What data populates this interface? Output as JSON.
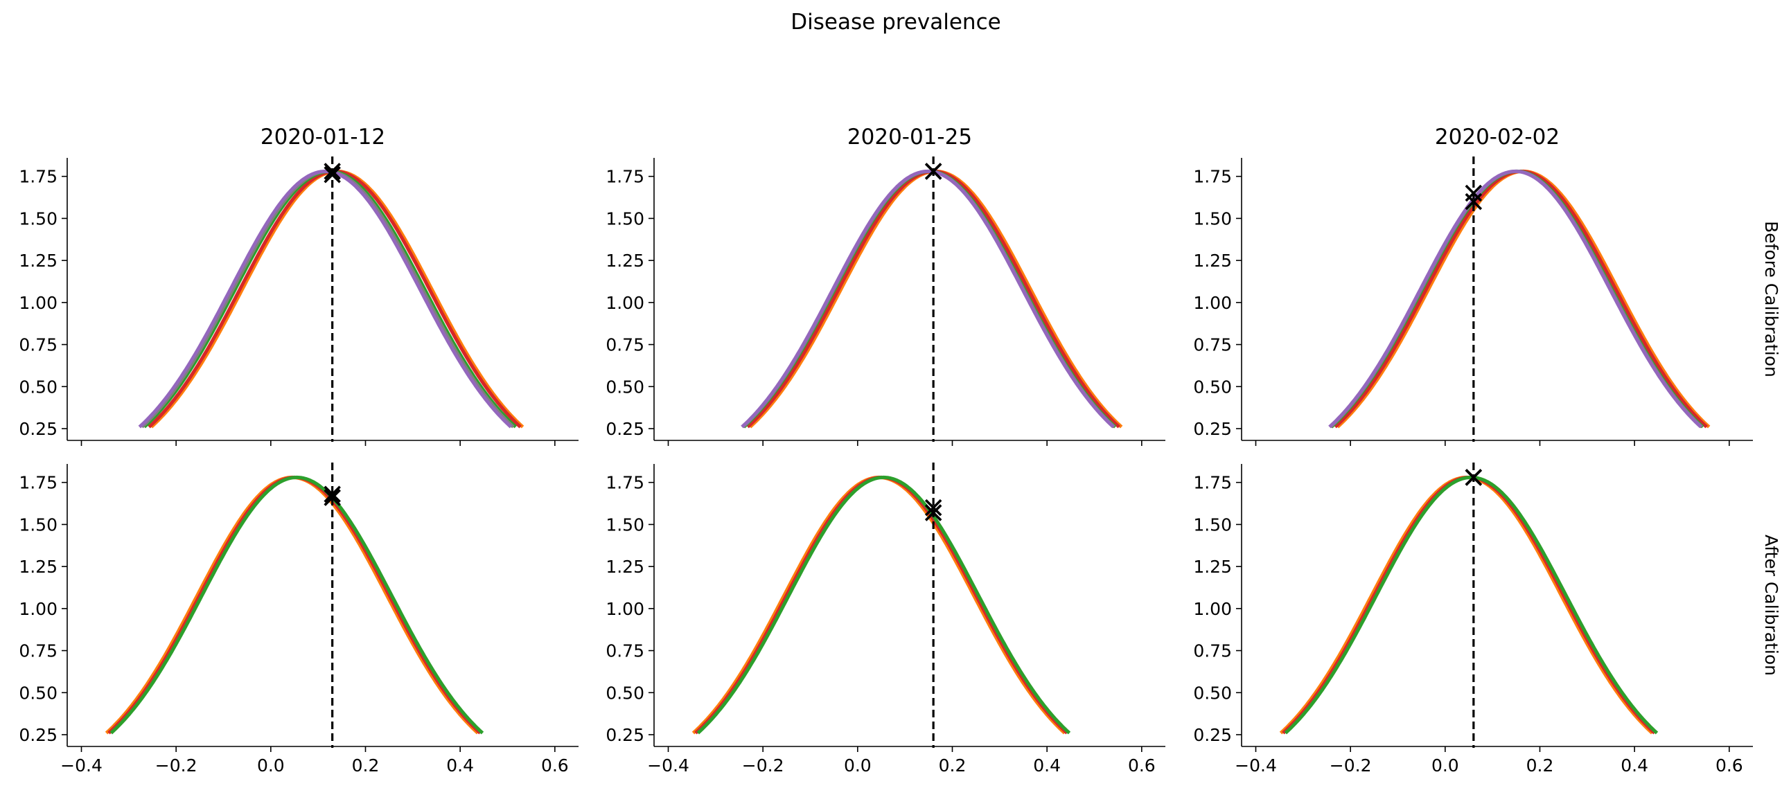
{
  "title": "Disease prevalence",
  "columns": [
    "2020-01-12",
    "2020-01-25",
    "2020-02-02"
  ],
  "rows": [
    "Before Calibration",
    "After Calibration"
  ],
  "chart_data": {
    "type": "line",
    "title": "Disease prevalence",
    "xlim": [
      -0.43,
      0.65
    ],
    "ylim": [
      0.18,
      1.86
    ],
    "xticks": [
      -0.4,
      -0.2,
      0.0,
      0.2,
      0.4,
      0.6
    ],
    "yticks": [
      0.25,
      0.5,
      0.75,
      1.0,
      1.25,
      1.5,
      1.75
    ],
    "curve_shape": "gaussian, peak height 1.78, evaluated where y >= 0.26",
    "series_colors": [
      "#ff7f0e",
      "#d62728",
      "#2ca02c",
      "#7f7f7f",
      "#9467bd",
      "#1f77b4"
    ],
    "panels": [
      {
        "row": "Before Calibration",
        "column": "2020-01-12",
        "vline_x": 0.13,
        "marker_y": [
          1.78,
          1.76
        ],
        "series": [
          {
            "mean": 0.14,
            "sd": 0.2
          },
          {
            "mean": 0.135,
            "sd": 0.2
          },
          {
            "mean": 0.125,
            "sd": 0.2
          },
          {
            "mean": 0.12,
            "sd": 0.2
          },
          {
            "mean": 0.115,
            "sd": 0.2
          }
        ]
      },
      {
        "row": "Before Calibration",
        "column": "2020-01-25",
        "vline_x": 0.16,
        "marker_y": [
          1.78,
          1.78
        ],
        "series": [
          {
            "mean": 0.165,
            "sd": 0.2
          },
          {
            "mean": 0.16,
            "sd": 0.2
          },
          {
            "mean": 0.152,
            "sd": 0.2
          },
          {
            "mean": 0.15,
            "sd": 0.2
          },
          {
            "mean": 0.148,
            "sd": 0.2
          }
        ]
      },
      {
        "row": "Before Calibration",
        "column": "2020-02-02",
        "vline_x": 0.06,
        "marker_y": [
          1.65,
          1.6
        ],
        "series": [
          {
            "mean": 0.165,
            "sd": 0.2
          },
          {
            "mean": 0.16,
            "sd": 0.2
          },
          {
            "mean": 0.152,
            "sd": 0.2
          },
          {
            "mean": 0.15,
            "sd": 0.2
          },
          {
            "mean": 0.148,
            "sd": 0.2
          }
        ]
      },
      {
        "row": "After Calibration",
        "column": "2020-01-12",
        "vline_x": 0.13,
        "marker_y": [
          1.68,
          1.66
        ],
        "series": [
          {
            "mean": 0.045,
            "sd": 0.2
          },
          {
            "mean": 0.05,
            "sd": 0.2
          },
          {
            "mean": 0.055,
            "sd": 0.2
          }
        ]
      },
      {
        "row": "After Calibration",
        "column": "2020-01-25",
        "vline_x": 0.16,
        "marker_y": [
          1.6,
          1.57
        ],
        "series": [
          {
            "mean": 0.045,
            "sd": 0.2
          },
          {
            "mean": 0.05,
            "sd": 0.2
          },
          {
            "mean": 0.055,
            "sd": 0.2
          }
        ]
      },
      {
        "row": "After Calibration",
        "column": "2020-02-02",
        "vline_x": 0.06,
        "marker_y": [
          1.78,
          1.78
        ],
        "series": [
          {
            "mean": 0.045,
            "sd": 0.2
          },
          {
            "mean": 0.05,
            "sd": 0.2
          },
          {
            "mean": 0.055,
            "sd": 0.2
          }
        ]
      }
    ]
  }
}
